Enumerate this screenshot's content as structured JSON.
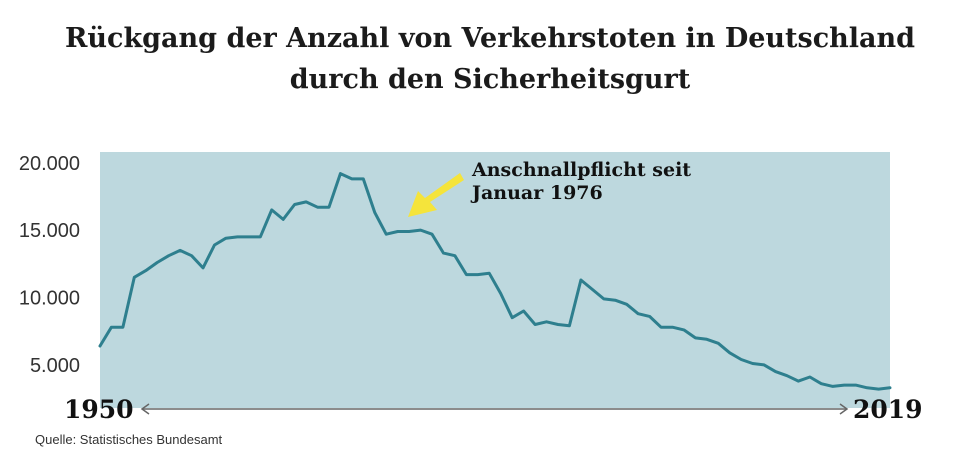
{
  "title": "Rückgang der Anzahl von Verkehrstoten in Deutschland durch den Sicherheitsgurt",
  "source": "Quelle: Statistisches Bundesamt",
  "annotation": {
    "line1": "Anschnallpflicht seit",
    "line2": "Januar 1976",
    "x": 1976,
    "arrow_color": "#f5e43b"
  },
  "colors": {
    "plot_background": "#bdd8de",
    "line": "#2e7f8e",
    "axis_arrow": "#666666",
    "text": "#1a1a1a"
  },
  "chart_data": {
    "type": "line",
    "title": "Rückgang der Anzahl von Verkehrstoten in Deutschland durch den Sicherheitsgurt",
    "xlabel": "",
    "ylabel": "",
    "x_start_label": "1950",
    "x_end_label": "2019",
    "xlim": [
      1950,
      2019
    ],
    "ylim": [
      1800,
      20800
    ],
    "y_ticks": [
      5000,
      10000,
      15000,
      20000
    ],
    "y_tick_labels": [
      "5.000",
      "10.000",
      "15.000",
      "20.000"
    ],
    "grid": false,
    "legend": "none",
    "x": [
      1950,
      1951,
      1952,
      1953,
      1954,
      1955,
      1956,
      1957,
      1958,
      1959,
      1960,
      1961,
      1962,
      1963,
      1964,
      1965,
      1966,
      1967,
      1968,
      1969,
      1970,
      1971,
      1972,
      1973,
      1974,
      1975,
      1976,
      1977,
      1978,
      1979,
      1980,
      1981,
      1982,
      1983,
      1984,
      1985,
      1986,
      1987,
      1988,
      1989,
      1990,
      1991,
      1992,
      1993,
      1994,
      1995,
      1996,
      1997,
      1998,
      1999,
      2000,
      2001,
      2002,
      2003,
      2004,
      2005,
      2006,
      2007,
      2008,
      2009,
      2010,
      2011,
      2012,
      2013,
      2014,
      2015,
      2016,
      2017,
      2018,
      2019
    ],
    "values": [
      6400,
      7800,
      7800,
      11500,
      12000,
      12600,
      13100,
      13500,
      13100,
      12200,
      13900,
      14400,
      14500,
      14500,
      14500,
      16500,
      15800,
      16900,
      17100,
      16700,
      16700,
      19200,
      18800,
      18800,
      16300,
      14700,
      14900,
      14900,
      15000,
      14700,
      13300,
      13100,
      11700,
      11700,
      11800,
      10300,
      8500,
      9000,
      8000,
      8200,
      8000,
      7900,
      11300,
      10600,
      9900,
      9800,
      9500,
      8800,
      8600,
      7800,
      7800,
      7600,
      7000,
      6900,
      6600,
      5900,
      5400,
      5100,
      5000,
      4500,
      4200,
      3800,
      4100,
      3600,
      3400,
      3500,
      3500,
      3300,
      3200,
      3300
    ]
  }
}
